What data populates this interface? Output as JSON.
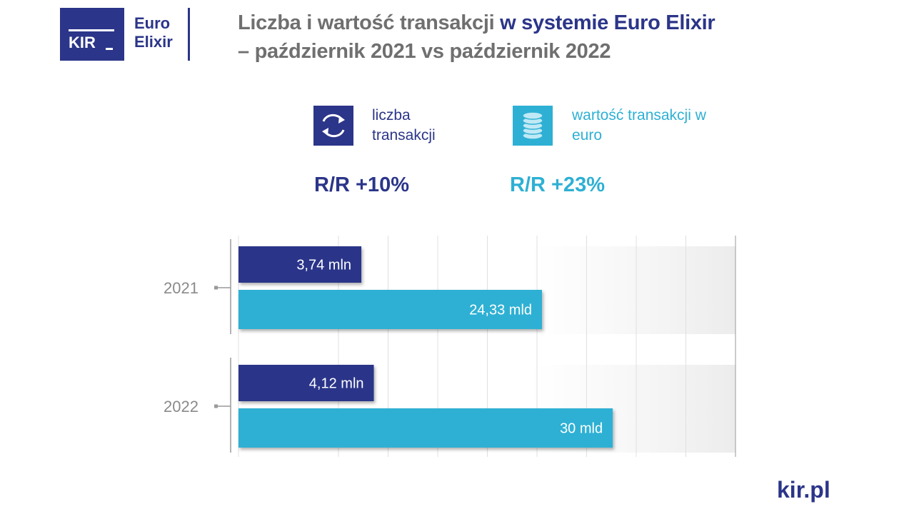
{
  "logo": {
    "mark": "KIR",
    "line1": "Euro",
    "line2": "Elixir"
  },
  "footer": "kir.pl",
  "chart_data": {
    "type": "bar",
    "orientation": "horizontal",
    "title": [
      "Liczba i wartość transakcji",
      "w systemie Euro Elixir",
      "– październik 2021 vs październik 2022"
    ],
    "annotations": [
      "R/R +10%",
      "R/R +23%"
    ],
    "categories": [
      "2021",
      "2022"
    ],
    "series": [
      {
        "name": "liczba transakcji",
        "color": "#2b3589",
        "values": [
          3.74,
          4.12
        ],
        "value_labels": [
          "3,74 mln",
          "4,12 mln"
        ]
      },
      {
        "name": "wartość transakcji w euro",
        "color": "#2eb0d4",
        "values": [
          24.33,
          30
        ],
        "value_labels": [
          "24,33 mld",
          "30 mld"
        ]
      }
    ]
  }
}
